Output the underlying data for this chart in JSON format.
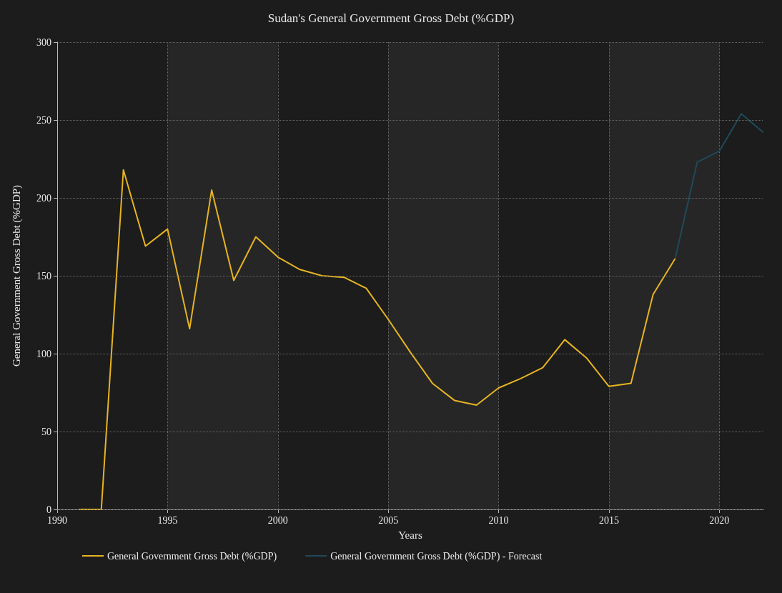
{
  "chart_data": {
    "type": "line",
    "title": "Sudan's General Government Gross Debt (%GDP)",
    "xlabel": "Years",
    "ylabel": "General Government Gross Debt (%GDP)",
    "series": [
      {
        "name": "General Government Gross Debt (%GDP)",
        "color": "#e6b422",
        "x": [
          1991,
          1992,
          1993,
          1994,
          1995,
          1996,
          1997,
          1998,
          1999,
          2000,
          2001,
          2002,
          2003,
          2004,
          2005,
          2006,
          2007,
          2008,
          2009,
          2010,
          2011,
          2012,
          2013,
          2014,
          2015,
          2016,
          2017,
          2018
        ],
        "values": [
          0,
          0,
          218,
          169,
          180,
          116,
          205,
          147,
          175,
          162,
          154,
          150,
          149,
          142,
          122,
          101,
          81,
          70,
          67,
          78,
          84,
          91,
          109,
          97,
          79,
          81,
          138,
          161
        ]
      },
      {
        "name": "General Government Gross Debt (%GDP) - Forecast",
        "color": "#1f4a5a",
        "x": [
          2018,
          2019,
          2020,
          2021,
          2022
        ],
        "values": [
          161,
          223,
          230,
          254,
          242
        ]
      }
    ],
    "xlim": [
      1990,
      2022
    ],
    "xticks": [
      1990,
      1995,
      2000,
      2005,
      2010,
      2015,
      2020
    ],
    "ylim": [
      0,
      300
    ],
    "yticks": [
      0,
      50,
      100,
      150,
      200,
      250,
      300
    ],
    "grid": true,
    "legend": "bottom",
    "marker": "none",
    "line_style": "solid"
  }
}
